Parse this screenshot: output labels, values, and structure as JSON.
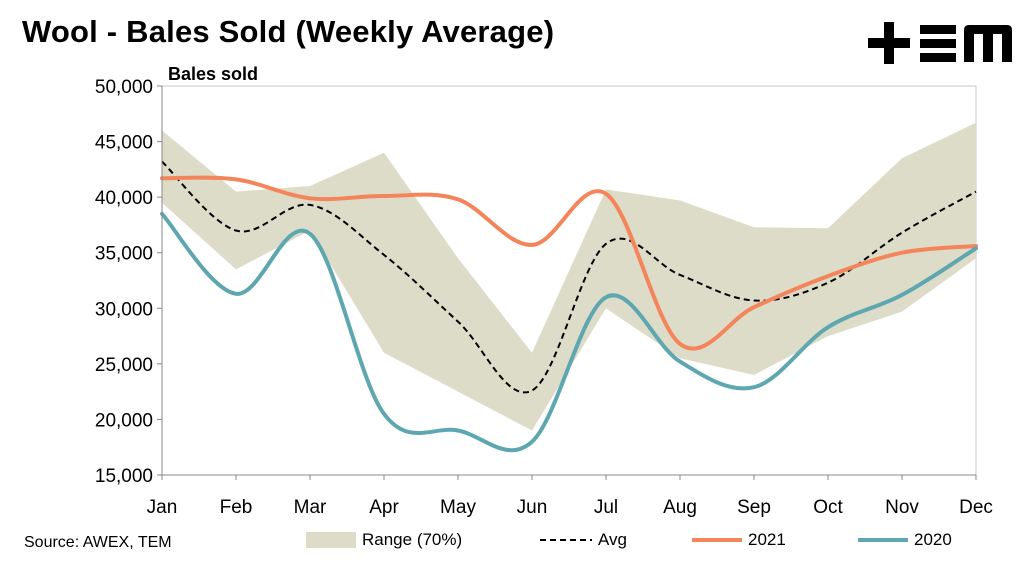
{
  "title": "Wool - Bales Sold (Weekly Average)",
  "brand": "TEM",
  "source": "Source: AWEX, TEM",
  "colors": {
    "range": "#dcdcc9",
    "avg": "#000000",
    "s2021": "#f4845a",
    "s2020": "#5ea6b0",
    "axis": "#888888",
    "plot_border": "#c8c8c8"
  },
  "chart_data": {
    "type": "line",
    "title": "Wool - Bales Sold (Weekly Average)",
    "ylabel": "Bales sold",
    "xlabel": "",
    "ylim": [
      15000,
      50000
    ],
    "yticks": [
      15000,
      20000,
      25000,
      30000,
      35000,
      40000,
      45000,
      50000
    ],
    "ytick_labels": [
      "15,000",
      "20,000",
      "25,000",
      "30,000",
      "35,000",
      "40,000",
      "45,000",
      "50,000"
    ],
    "categories": [
      "Jan",
      "Feb",
      "Mar",
      "Apr",
      "May",
      "Jun",
      "Jul",
      "Aug",
      "Sep",
      "Oct",
      "Nov",
      "Dec"
    ],
    "grid": false,
    "legend_position": "bottom",
    "range": {
      "name": "Range (70%)",
      "upper": [
        46000,
        40500,
        41000,
        44000,
        34500,
        26000,
        40700,
        39700,
        37300,
        37200,
        43500,
        46700
      ],
      "lower": [
        39500,
        33500,
        37000,
        26000,
        22500,
        19000,
        30000,
        25500,
        24000,
        27500,
        29700,
        34500
      ]
    },
    "series": [
      {
        "name": "Avg",
        "style": "dashed",
        "values": [
          43200,
          37000,
          39300,
          34800,
          28800,
          22600,
          35800,
          33000,
          30700,
          32300,
          36800,
          40500
        ]
      },
      {
        "name": "2021",
        "style": "solid",
        "values": [
          41700,
          41600,
          39900,
          40100,
          39800,
          35700,
          40300,
          26800,
          30100,
          32900,
          35000,
          35600
        ]
      },
      {
        "name": "2020",
        "style": "solid",
        "values": [
          38500,
          31300,
          36700,
          20500,
          19000,
          18000,
          31000,
          25200,
          22900,
          28300,
          31200,
          35400
        ]
      }
    ]
  }
}
